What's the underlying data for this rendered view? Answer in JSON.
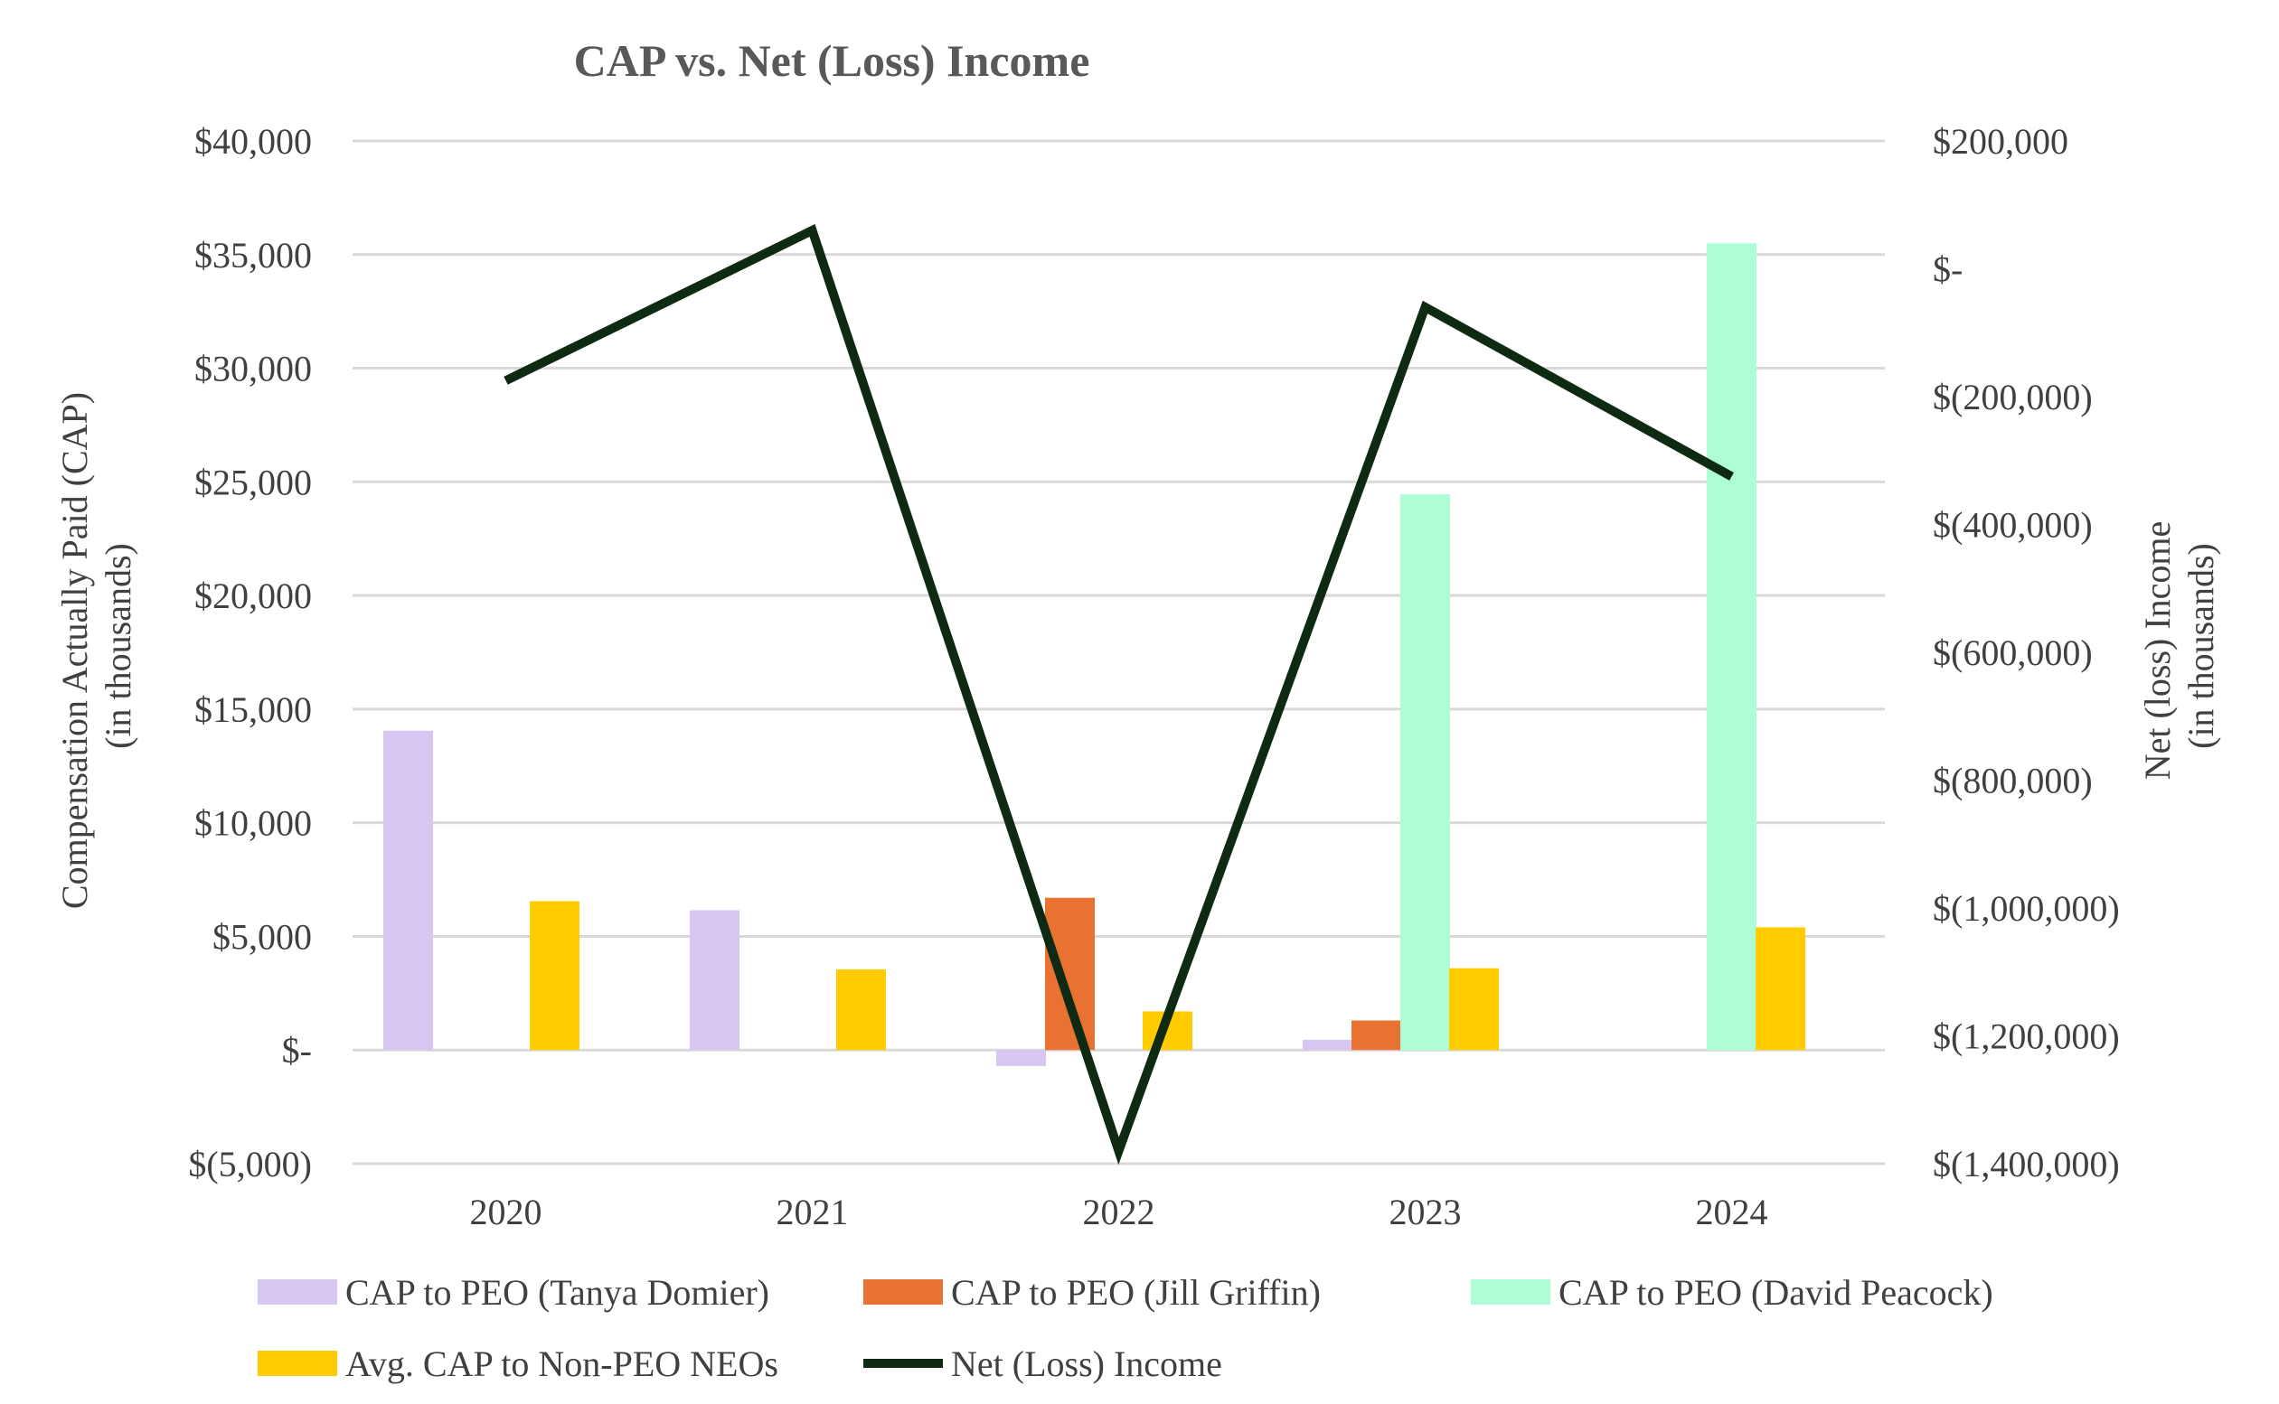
{
  "chart_data": {
    "type": "bar",
    "title": "CAP vs. Net (Loss) Income",
    "categories": [
      "2020",
      "2021",
      "2022",
      "2023",
      "2024"
    ],
    "y_left": {
      "label_line1": "Compensation Actually Paid (CAP)",
      "label_line2": "(in thousands)",
      "range": [
        -5000,
        40000
      ],
      "ticks": [
        40000,
        35000,
        30000,
        25000,
        20000,
        15000,
        10000,
        5000,
        0,
        -5000
      ],
      "tick_labels": [
        "$40,000",
        "$35,000",
        "$30,000",
        "$25,000",
        "$20,000",
        "$15,000",
        "$10,000",
        "$5,000",
        "$-",
        "$(5,000)"
      ]
    },
    "y_right": {
      "label_line1": "Net (loss) Income",
      "label_line2": "(in thousands)",
      "range": [
        -1400000,
        200000
      ],
      "ticks": [
        200000,
        0,
        -200000,
        -400000,
        -600000,
        -800000,
        -1000000,
        -1200000,
        -1400000
      ],
      "tick_labels": [
        "$200,000",
        "$-",
        "$(200,000)",
        "$(400,000)",
        "$(600,000)",
        "$(800,000)",
        "$(1,000,000)",
        "$(1,200,000)",
        "$(1,400,000)"
      ]
    },
    "bar_series": [
      {
        "name": "CAP to PEO (Tanya Domier)",
        "color": "#d7c6f2",
        "values": [
          14050,
          6150,
          -700,
          450,
          null
        ]
      },
      {
        "name": "CAP to PEO (Jill Griffin)",
        "color": "#e97132",
        "values": [
          null,
          null,
          6700,
          1300,
          null
        ]
      },
      {
        "name": "CAP to PEO (David Peacock)",
        "color": "#adfdd6",
        "values": [
          null,
          null,
          null,
          24450,
          35500
        ]
      },
      {
        "name": "Avg. CAP to Non-PEO NEOs",
        "color": "#ffcc00",
        "values": [
          6550,
          3550,
          1700,
          3600,
          5400
        ]
      }
    ],
    "line_series": {
      "name": "Net (Loss) Income",
      "color": "#0e2a12",
      "values": [
        -175000,
        60000,
        -1380000,
        -60000,
        -325000
      ]
    }
  }
}
